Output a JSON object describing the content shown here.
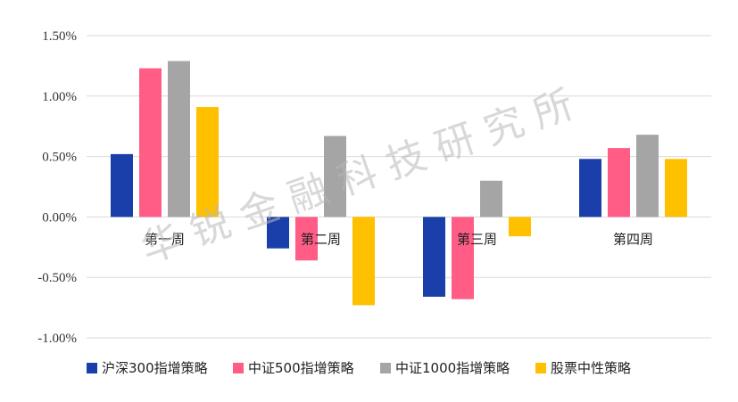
{
  "chart_data": {
    "type": "bar",
    "categories": [
      "第一周",
      "第二周",
      "第三周",
      "第四周"
    ],
    "series": [
      {
        "name": "沪深300指增策略",
        "color": "#1A3FAA",
        "values": [
          0.52,
          -0.26,
          -0.66,
          0.48
        ]
      },
      {
        "name": "中证500指增策略",
        "color": "#FF5C86",
        "values": [
          1.23,
          -0.36,
          -0.68,
          0.57
        ]
      },
      {
        "name": "中证1000指增策略",
        "color": "#A5A5A5",
        "values": [
          1.29,
          0.67,
          0.3,
          0.68
        ]
      },
      {
        "name": "股票中性策略",
        "color": "#FFC000",
        "values": [
          0.91,
          -0.73,
          -0.16,
          0.48
        ]
      }
    ],
    "yticks": [
      "1.50%",
      "1.00%",
      "0.50%",
      "0.00%",
      "-0.50%",
      "-1.00%"
    ],
    "ylim": [
      -1.0,
      1.5
    ],
    "grid": true,
    "legend_position": "bottom",
    "title": "",
    "xlabel": "",
    "ylabel": ""
  },
  "watermark": "华锐金融科技研究所"
}
